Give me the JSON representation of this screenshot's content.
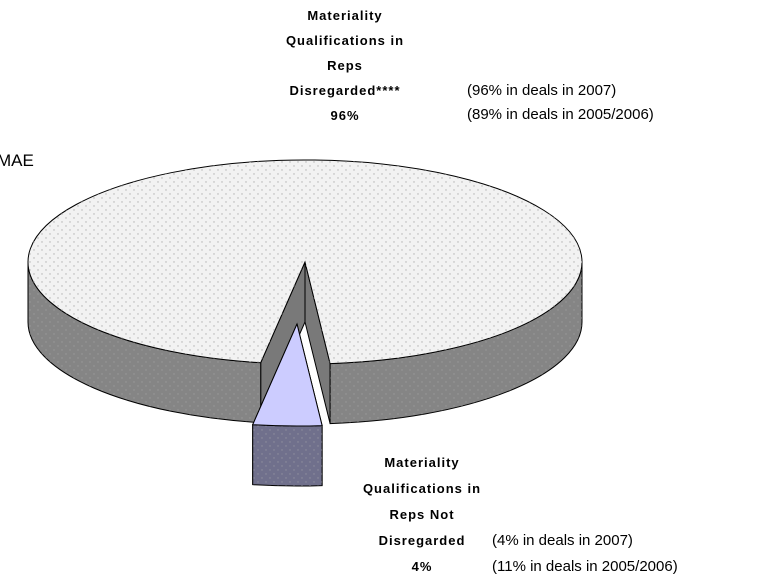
{
  "chart_data": {
    "type": "pie",
    "categories": [
      "Materiality Qualifications in Reps Disregarded****",
      "Materiality Qualifications in Reps Not Disregarded"
    ],
    "values": [
      96,
      4
    ],
    "value_labels": [
      "96%",
      "4%"
    ],
    "colors": [
      "#f2f2f2",
      "#ccccff"
    ],
    "annotations": [
      "MAE",
      "(96% in deals in 2007)",
      "(89% in deals in 2005/2006)",
      "(4% in deals in 2007)",
      "(11% in deals in 2005/2006)"
    ]
  }
}
